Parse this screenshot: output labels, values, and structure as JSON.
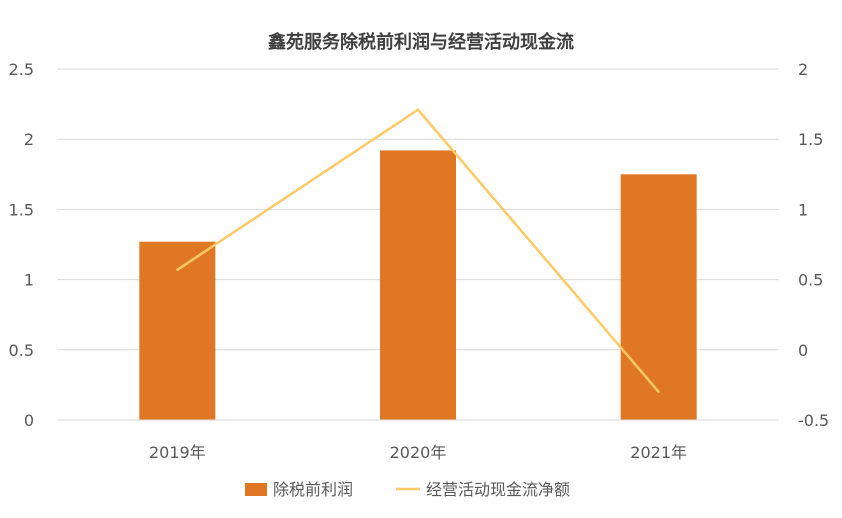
{
  "chart_data": {
    "type": "bar",
    "title": "鑫苑服务除税前利润与经营活动现金流",
    "categories": [
      "2019年",
      "2020年",
      "2021年"
    ],
    "series": [
      {
        "name": "除税前利润",
        "type": "bar",
        "axis": "left",
        "color": "#E07722",
        "values": [
          1.27,
          1.92,
          1.75
        ]
      },
      {
        "name": "经营活动现金流净额",
        "type": "line",
        "axis": "right",
        "color": "#FFC966",
        "values": [
          0.57,
          1.71,
          -0.3
        ]
      }
    ],
    "left_axis": {
      "min": 0,
      "max": 2.5,
      "ticks": [
        "0",
        "0.5",
        "1",
        "1.5",
        "2",
        "2.5"
      ]
    },
    "right_axis": {
      "min": -0.5,
      "max": 2,
      "ticks": [
        "-0.5",
        "0",
        "0.5",
        "1",
        "1.5",
        "2"
      ]
    },
    "grid": true,
    "legend_position": "bottom"
  }
}
